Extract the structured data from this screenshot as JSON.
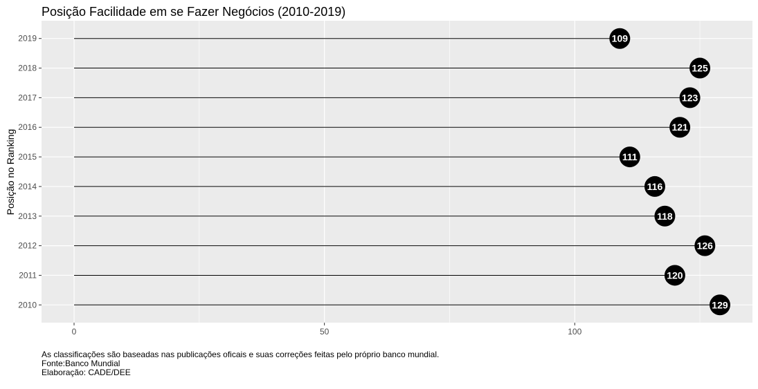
{
  "chart_data": {
    "type": "lollipop",
    "title": "Posição Facilidade em se Fazer Negócios (2010-2019)",
    "ylabel": "Posição no Ranking",
    "xlabel": "",
    "categories": [
      "2010",
      "2011",
      "2012",
      "2013",
      "2014",
      "2015",
      "2016",
      "2017",
      "2018",
      "2019"
    ],
    "values": [
      129,
      120,
      126,
      118,
      116,
      111,
      121,
      123,
      125,
      109
    ],
    "xlim": [
      -6.5,
      135.5
    ],
    "x_ticks": [
      0,
      50,
      100
    ],
    "x_tick_labels": [
      "0",
      "50",
      "100"
    ],
    "grid": true,
    "background": "#ebebeb",
    "point_color": "#000000",
    "label_color": "#ffffff"
  },
  "caption": {
    "line1": "As classificações são baseadas nas publicações oficais e suas correções feitas pelo próprio banco mundial.",
    "line2": "Fonte:Banco Mundial",
    "line3": "Elaboração: CADE/DEE"
  }
}
